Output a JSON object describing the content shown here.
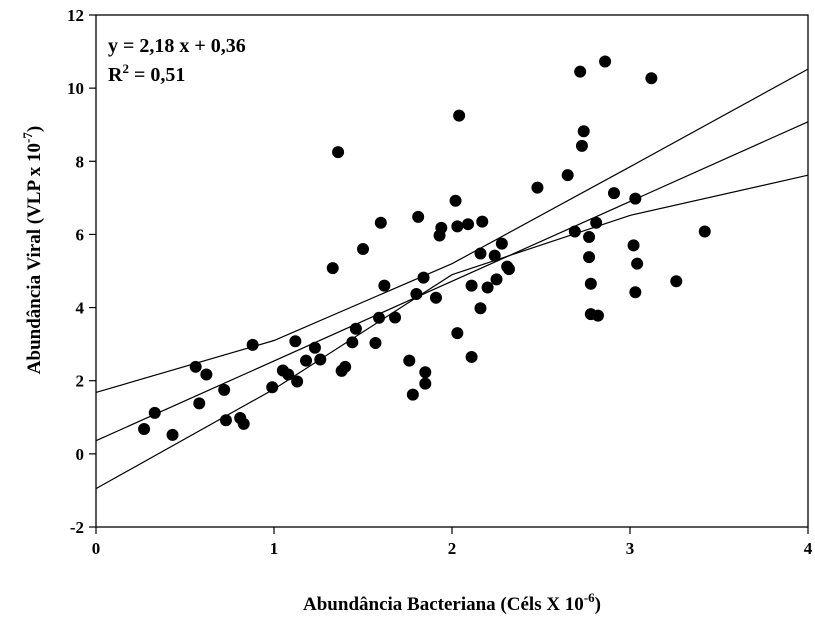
{
  "chart_data": {
    "type": "scatter",
    "xlabel": {
      "text": "Abundância Bacteriana (Céls X 10",
      "sup": "-6",
      "suffix": ")"
    },
    "ylabel": {
      "text": "Abundância Viral (VLP x 10",
      "sup": "-7",
      "suffix": ")"
    },
    "xlim": [
      0,
      4
    ],
    "ylim": [
      -2,
      12
    ],
    "xticks": [
      "0",
      "1",
      "2",
      "3",
      "4"
    ],
    "yticks": [
      "-2",
      "0",
      "2",
      "4",
      "6",
      "8",
      "10",
      "12"
    ],
    "grid": false,
    "annotation": {
      "equation": "y = 2,18 x + 0,36",
      "r2_prefix": "R",
      "r2_sup": "2",
      "r2_suffix": " = 0,51"
    },
    "regression": {
      "slope": 2.18,
      "intercept": 0.36
    },
    "confidence_band": {
      "upper": [
        [
          0,
          1.68
        ],
        [
          1,
          3.1
        ],
        [
          2,
          5.2
        ],
        [
          3,
          7.85
        ],
        [
          4,
          10.52
        ]
      ],
      "lower": [
        [
          0,
          -0.95
        ],
        [
          1,
          1.77
        ],
        [
          2,
          4.9
        ],
        [
          3,
          6.52
        ],
        [
          4,
          7.62
        ]
      ]
    },
    "points": [
      [
        0.27,
        0.68
      ],
      [
        0.33,
        1.12
      ],
      [
        0.43,
        0.52
      ],
      [
        0.56,
        2.38
      ],
      [
        0.58,
        1.38
      ],
      [
        0.62,
        2.17
      ],
      [
        0.72,
        1.75
      ],
      [
        0.73,
        0.92
      ],
      [
        0.81,
        0.98
      ],
      [
        0.83,
        0.82
      ],
      [
        0.88,
        2.98
      ],
      [
        0.99,
        1.82
      ],
      [
        1.05,
        2.28
      ],
      [
        1.08,
        2.17
      ],
      [
        1.12,
        3.08
      ],
      [
        1.13,
        1.98
      ],
      [
        1.18,
        2.55
      ],
      [
        1.23,
        2.9
      ],
      [
        1.26,
        2.58
      ],
      [
        1.33,
        5.08
      ],
      [
        1.36,
        8.25
      ],
      [
        1.38,
        2.27
      ],
      [
        1.4,
        2.38
      ],
      [
        1.44,
        3.05
      ],
      [
        1.46,
        3.42
      ],
      [
        1.5,
        5.6
      ],
      [
        1.57,
        3.03
      ],
      [
        1.59,
        3.72
      ],
      [
        1.6,
        6.32
      ],
      [
        1.62,
        4.6
      ],
      [
        1.68,
        3.73
      ],
      [
        1.76,
        2.55
      ],
      [
        1.78,
        1.62
      ],
      [
        1.8,
        4.37
      ],
      [
        1.81,
        6.48
      ],
      [
        1.84,
        4.82
      ],
      [
        1.85,
        2.23
      ],
      [
        1.85,
        1.92
      ],
      [
        1.91,
        4.27
      ],
      [
        1.93,
        5.97
      ],
      [
        1.94,
        6.18
      ],
      [
        2.02,
        6.92
      ],
      [
        2.03,
        6.22
      ],
      [
        2.03,
        3.3
      ],
      [
        2.04,
        9.25
      ],
      [
        2.09,
        6.28
      ],
      [
        2.11,
        4.6
      ],
      [
        2.11,
        2.65
      ],
      [
        2.16,
        3.98
      ],
      [
        2.16,
        5.48
      ],
      [
        2.17,
        6.35
      ],
      [
        2.2,
        4.55
      ],
      [
        2.24,
        5.42
      ],
      [
        2.25,
        4.77
      ],
      [
        2.28,
        5.75
      ],
      [
        2.31,
        5.12
      ],
      [
        2.32,
        5.05
      ],
      [
        2.48,
        7.28
      ],
      [
        2.65,
        7.62
      ],
      [
        2.69,
        6.08
      ],
      [
        2.72,
        10.45
      ],
      [
        2.73,
        8.42
      ],
      [
        2.74,
        8.82
      ],
      [
        2.77,
        5.93
      ],
      [
        2.77,
        5.38
      ],
      [
        2.78,
        4.65
      ],
      [
        2.78,
        3.82
      ],
      [
        2.81,
        6.32
      ],
      [
        2.82,
        3.78
      ],
      [
        2.86,
        10.73
      ],
      [
        2.91,
        7.13
      ],
      [
        3.02,
        5.7
      ],
      [
        3.03,
        6.98
      ],
      [
        3.03,
        4.42
      ],
      [
        3.04,
        5.2
      ],
      [
        3.12,
        10.27
      ],
      [
        3.26,
        4.72
      ],
      [
        3.42,
        6.08
      ]
    ]
  }
}
